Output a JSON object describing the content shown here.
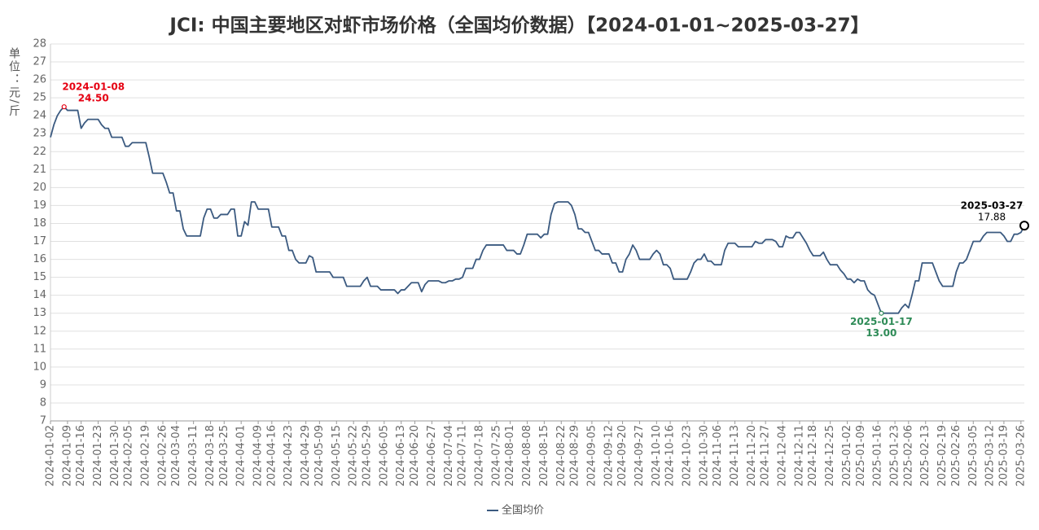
{
  "chart_data": {
    "type": "line",
    "title": "JCI: 中国主要地区对虾市场价格（全国均价数据）【2024-01-01~2025-03-27】",
    "y_label": "单位：元/斤",
    "ylim": [
      7,
      28
    ],
    "yticks": [
      7,
      8,
      9,
      10,
      11,
      12,
      13,
      14,
      15,
      16,
      17,
      18,
      19,
      20,
      21,
      22,
      23,
      24,
      25,
      26,
      27,
      28
    ],
    "grid": true,
    "legend": "bottom",
    "categories": [
      "2024-01-02",
      null,
      null,
      null,
      null,
      "2024-01-09",
      null,
      null,
      null,
      "2024-01-16",
      null,
      null,
      null,
      null,
      "2024-01-23",
      null,
      null,
      null,
      null,
      "2024-01-30",
      null,
      null,
      null,
      "2024-02-05",
      null,
      null,
      null,
      null,
      "2024-02-19",
      null,
      null,
      null,
      null,
      "2024-02-26",
      null,
      null,
      null,
      "2024-03-04",
      null,
      null,
      null,
      null,
      "2024-03-11",
      null,
      null,
      null,
      null,
      "2024-03-18",
      null,
      null,
      null,
      "2024-03-25",
      null,
      null,
      null,
      null,
      "2024-04-01",
      null,
      null,
      null,
      null,
      "2024-04-09",
      null,
      null,
      null,
      "2024-04-16",
      null,
      null,
      null,
      null,
      "2024-04-23",
      null,
      null,
      null,
      null,
      "2024-04-29",
      null,
      null,
      null,
      "2024-05-09",
      null,
      null,
      null,
      null,
      "2024-05-15",
      null,
      null,
      null,
      null,
      "2024-05-22",
      null,
      null,
      null,
      "2024-05-29",
      null,
      null,
      null,
      null,
      "2024-06-05",
      null,
      null,
      null,
      null,
      "2024-06-13",
      null,
      null,
      null,
      "2024-06-20",
      null,
      null,
      null,
      null,
      "2024-06-27",
      null,
      null,
      null,
      null,
      "2024-07-04",
      null,
      null,
      null,
      "2024-07-11",
      null,
      null,
      null,
      null,
      "2024-07-18",
      null,
      null,
      null,
      null,
      "2024-07-25",
      null,
      null,
      null,
      "2024-08-01",
      null,
      null,
      null,
      null,
      "2024-08-08",
      null,
      null,
      null,
      null,
      "2024-08-15",
      null,
      null,
      null,
      null,
      "2024-08-22",
      null,
      null,
      null,
      "2024-08-29",
      null,
      null,
      null,
      null,
      "2024-09-05",
      null,
      null,
      null,
      null,
      "2024-09-12",
      null,
      null,
      null,
      "2024-09-20",
      null,
      null,
      null,
      null,
      "2024-09-27",
      null,
      null,
      null,
      null,
      "2024-10-10",
      null,
      null,
      null,
      "2024-10-16",
      null,
      null,
      null,
      null,
      "2024-10-23",
      null,
      null,
      null,
      null,
      "2024-10-30",
      null,
      null,
      null,
      "2024-11-06",
      null,
      null,
      null,
      null,
      "2024-11-13",
      null,
      null,
      null,
      null,
      "2024-11-20",
      null,
      null,
      null,
      "2024-11-27",
      null,
      null,
      null,
      null,
      "2024-12-04",
      null,
      null,
      null,
      null,
      "2024-12-11",
      null,
      null,
      null,
      "2024-12-18",
      null,
      null,
      null,
      null,
      "2024-12-25",
      null,
      null,
      null,
      null,
      "2025-01-02",
      null,
      null,
      null,
      "2025-01-09",
      null,
      null,
      null,
      null,
      "2025-01-16",
      null,
      null,
      null,
      null,
      "2025-01-23",
      null,
      null,
      null,
      "2025-02-06",
      null,
      null,
      null,
      null,
      "2025-02-13",
      null,
      null,
      null,
      null,
      "2025-02-19",
      null,
      null,
      null,
      "2025-02-26",
      null,
      null,
      null,
      null,
      "2025-03-05",
      null,
      null,
      null,
      null,
      "2025-03-12",
      null,
      null,
      null,
      "2025-03-19",
      null,
      null,
      null,
      null,
      "2025-03-26",
      null
    ],
    "series": [
      {
        "name": "全国均价",
        "color": "#3b5a80",
        "values": [
          22.8,
          23.5,
          24.0,
          24.3,
          24.5,
          24.3,
          24.3,
          24.3,
          24.3,
          23.3,
          23.6,
          23.8,
          23.8,
          23.8,
          23.8,
          23.5,
          23.3,
          23.3,
          22.8,
          22.8,
          22.8,
          22.8,
          22.3,
          22.3,
          22.5,
          22.5,
          22.5,
          22.5,
          22.5,
          21.7,
          20.8,
          20.8,
          20.8,
          20.8,
          20.3,
          19.7,
          19.7,
          18.7,
          18.7,
          17.7,
          17.3,
          17.3,
          17.3,
          17.3,
          17.3,
          18.3,
          18.8,
          18.8,
          18.3,
          18.3,
          18.5,
          18.5,
          18.5,
          18.8,
          18.8,
          17.3,
          17.3,
          18.1,
          17.9,
          19.2,
          19.2,
          18.8,
          18.8,
          18.8,
          18.8,
          17.8,
          17.8,
          17.8,
          17.3,
          17.3,
          16.5,
          16.5,
          16.0,
          15.8,
          15.8,
          15.8,
          16.2,
          16.1,
          15.3,
          15.3,
          15.3,
          15.3,
          15.3,
          15.0,
          15.0,
          15.0,
          15.0,
          14.5,
          14.5,
          14.5,
          14.5,
          14.5,
          14.8,
          15.0,
          14.5,
          14.5,
          14.5,
          14.3,
          14.3,
          14.3,
          14.3,
          14.3,
          14.1,
          14.3,
          14.3,
          14.5,
          14.7,
          14.7,
          14.7,
          14.2,
          14.6,
          14.8,
          14.8,
          14.8,
          14.8,
          14.7,
          14.7,
          14.8,
          14.8,
          14.9,
          14.9,
          15.0,
          15.5,
          15.5,
          15.5,
          16.0,
          16.0,
          16.5,
          16.8,
          16.8,
          16.8,
          16.8,
          16.8,
          16.8,
          16.5,
          16.5,
          16.5,
          16.3,
          16.3,
          16.8,
          17.4,
          17.4,
          17.4,
          17.4,
          17.2,
          17.4,
          17.4,
          18.5,
          19.1,
          19.2,
          19.2,
          19.2,
          19.2,
          19.0,
          18.5,
          17.7,
          17.7,
          17.5,
          17.5,
          17.0,
          16.5,
          16.5,
          16.3,
          16.3,
          16.3,
          15.8,
          15.8,
          15.3,
          15.3,
          16.0,
          16.3,
          16.8,
          16.5,
          16.0,
          16.0,
          16.0,
          16.0,
          16.3,
          16.5,
          16.3,
          15.7,
          15.7,
          15.5,
          14.9,
          14.9,
          14.9,
          14.9,
          14.9,
          15.3,
          15.8,
          16.0,
          16.0,
          16.3,
          15.9,
          15.9,
          15.7,
          15.7,
          15.7,
          16.5,
          16.9,
          16.9,
          16.9,
          16.7,
          16.7,
          16.7,
          16.7,
          16.7,
          17.0,
          16.9,
          16.9,
          17.1,
          17.1,
          17.1,
          17.0,
          16.7,
          16.7,
          17.3,
          17.2,
          17.2,
          17.5,
          17.5,
          17.2,
          16.9,
          16.5,
          16.2,
          16.2,
          16.2,
          16.4,
          16.0,
          15.7,
          15.7,
          15.7,
          15.4,
          15.2,
          14.9,
          14.9,
          14.7,
          14.9,
          14.8,
          14.8,
          14.3,
          14.1,
          14.0,
          13.5,
          13.0,
          13.0,
          13.0,
          13.0,
          13.0,
          13.0,
          13.3,
          13.5,
          13.3,
          14.0,
          14.8,
          14.8,
          15.8,
          15.8,
          15.8,
          15.8,
          15.3,
          14.8,
          14.5,
          14.5,
          14.5,
          14.5,
          15.3,
          15.8,
          15.8,
          16.0,
          16.5,
          17.0,
          17.0,
          17.0,
          17.3,
          17.5,
          17.5,
          17.5,
          17.5,
          17.5,
          17.3,
          17.0,
          17.0,
          17.4,
          17.4,
          17.5,
          17.88
        ]
      }
    ],
    "annotations": [
      {
        "date": "2024-01-08",
        "value": 24.5,
        "label": "24.50",
        "color": "#e60012"
      },
      {
        "date": "2025-01-17",
        "value": 13.0,
        "label": "13.00",
        "color": "#2e8b57"
      },
      {
        "date": "2025-03-27",
        "value": 17.88,
        "label": "17.88",
        "color": "#000000"
      }
    ]
  }
}
